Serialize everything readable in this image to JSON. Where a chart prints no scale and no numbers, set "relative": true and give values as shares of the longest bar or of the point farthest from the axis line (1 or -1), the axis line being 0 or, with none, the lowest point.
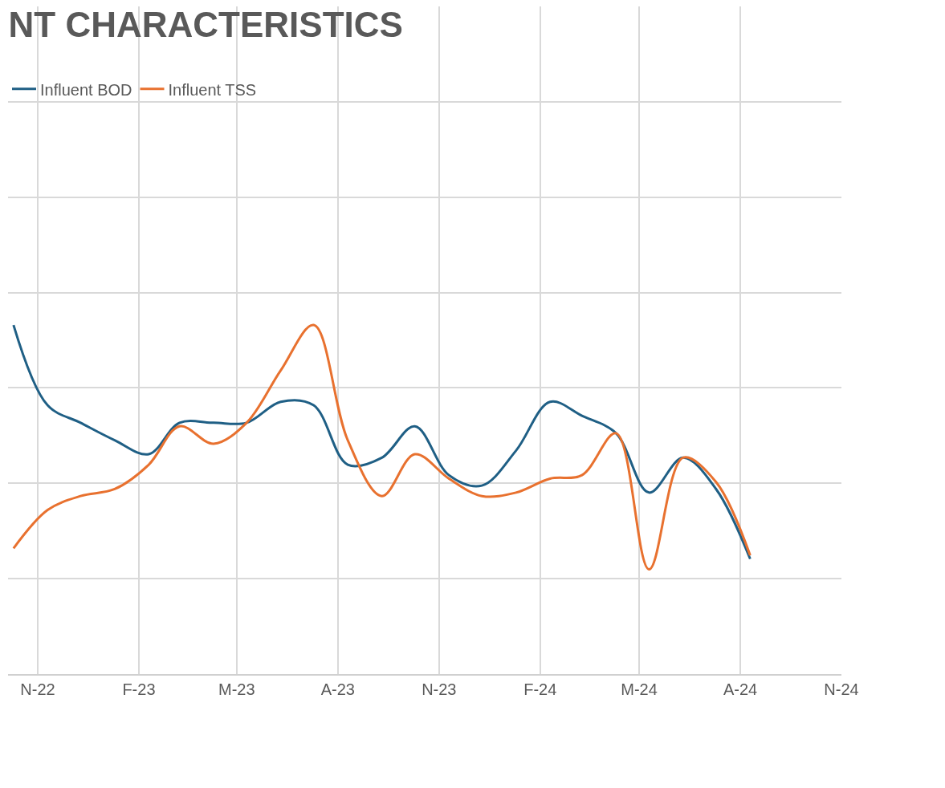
{
  "chart_data": {
    "type": "line",
    "title": "NT CHARACTERISTICS",
    "relative": true,
    "grid": true,
    "legend": "top left",
    "line_style": "solid",
    "marker": "none",
    "x": [
      "2022-10-10",
      "2022-11-10",
      "2022-12-10",
      "2023-01-10",
      "2023-02-10",
      "2023-03-10",
      "2023-04-10",
      "2023-05-10",
      "2023-06-10",
      "2023-07-10",
      "2023-08-10",
      "2023-09-10",
      "2023-10-10",
      "2023-11-10",
      "2023-12-10",
      "2024-01-10",
      "2024-02-10",
      "2024-03-10",
      "2024-04-10",
      "2024-05-10",
      "2024-06-10",
      "2024-07-10",
      "2024-08-10"
    ],
    "xlim": [
      "2022-10-05",
      "2024-11-01"
    ],
    "xticks": [
      {
        "value": "2022-11-01",
        "label": "N-22"
      },
      {
        "value": "2023-02-01",
        "label": "F-23"
      },
      {
        "value": "2023-05-01",
        "label": "M-23"
      },
      {
        "value": "2023-08-01",
        "label": "A-23"
      },
      {
        "value": "2023-11-01",
        "label": "N-23"
      },
      {
        "value": "2024-02-01",
        "label": "F-24"
      },
      {
        "value": "2024-05-01",
        "label": "M-24"
      },
      {
        "value": "2024-08-01",
        "label": "A-24"
      },
      {
        "value": "2024-11-01",
        "label": "N-24"
      }
    ],
    "series": [
      {
        "name": "Influent BOD",
        "color": "#1f5f85",
        "values": [
          1.0,
          0.77,
          0.72,
          0.67,
          0.63,
          0.72,
          0.72,
          0.72,
          0.78,
          0.77,
          0.6,
          0.62,
          0.71,
          0.57,
          0.54,
          0.64,
          0.78,
          0.74,
          0.69,
          0.52,
          0.62,
          0.53,
          0.33
        ]
      },
      {
        "name": "Influent TSS",
        "color": "#e8712f",
        "values": [
          0.36,
          0.47,
          0.51,
          0.53,
          0.6,
          0.71,
          0.66,
          0.72,
          0.87,
          1.0,
          0.67,
          0.51,
          0.63,
          0.56,
          0.51,
          0.52,
          0.56,
          0.57,
          0.69,
          0.3,
          0.62,
          0.55,
          0.34
        ]
      }
    ]
  }
}
